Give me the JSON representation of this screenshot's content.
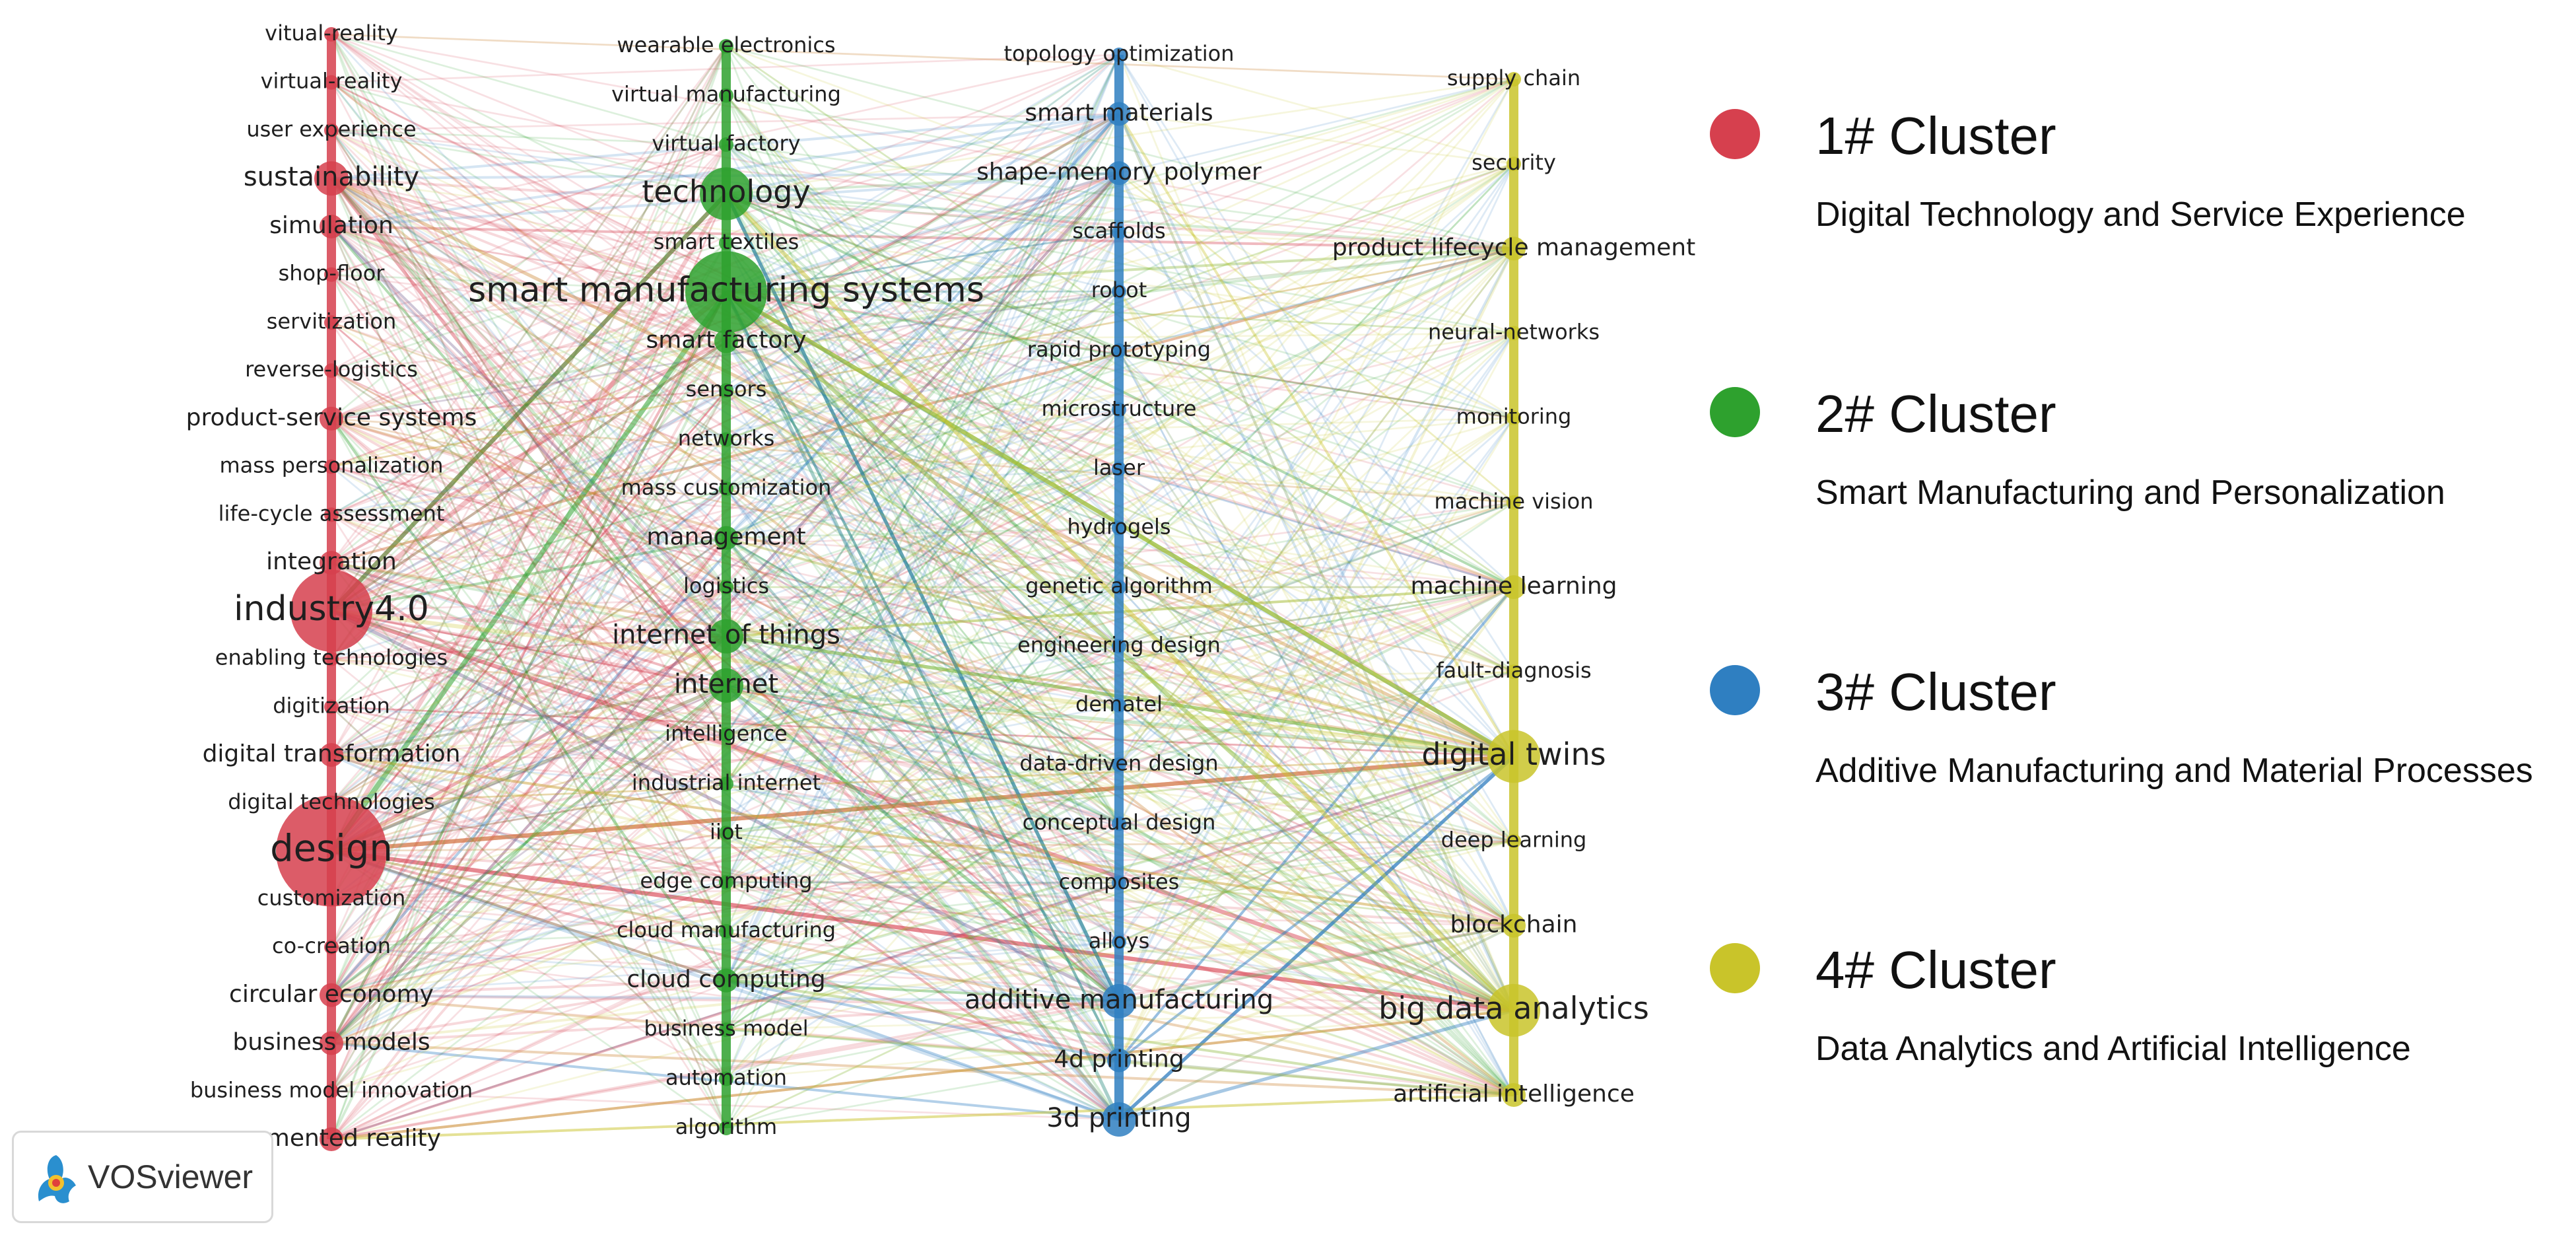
{
  "colors": {
    "cluster1": "#d6404e",
    "cluster2": "#2ea12e",
    "cluster3": "#2f7fc1",
    "cluster4": "#c9c42a"
  },
  "legend": [
    {
      "name": "1# Cluster",
      "description": "Digital Technology and Service Experience",
      "color": "#d6404e"
    },
    {
      "name": "2# Cluster",
      "description": "Smart Manufacturing and Personalization",
      "color": "#2ea12e"
    },
    {
      "name": "3# Cluster",
      "description": "Additive Manufacturing and Material Processes",
      "color": "#2f7fc1"
    },
    {
      "name": "4# Cluster",
      "description": "Data Analytics and Artificial Intelligence",
      "color": "#c9c42a"
    }
  ],
  "clusters": [
    {
      "id": 1,
      "terms": [
        {
          "label": "vitual-reality",
          "weight": 1
        },
        {
          "label": "virtual-reality",
          "weight": 1
        },
        {
          "label": "user experience",
          "weight": 1
        },
        {
          "label": "sustainability",
          "weight": 3
        },
        {
          "label": "simulation",
          "weight": 2
        },
        {
          "label": "shop-floor",
          "weight": 1
        },
        {
          "label": "servitization",
          "weight": 1
        },
        {
          "label": "reverse-logistics",
          "weight": 1
        },
        {
          "label": "product-service systems",
          "weight": 2
        },
        {
          "label": "mass personalization",
          "weight": 1
        },
        {
          "label": "life-cycle assessment",
          "weight": 1
        },
        {
          "label": "integration",
          "weight": 2
        },
        {
          "label": "industry4.0",
          "weight": 5
        },
        {
          "label": "enabling technologies",
          "weight": 1
        },
        {
          "label": "digitization",
          "weight": 1
        },
        {
          "label": "digital transformation",
          "weight": 2
        },
        {
          "label": "digital technologies",
          "weight": 1
        },
        {
          "label": "design",
          "weight": 6
        },
        {
          "label": "customization",
          "weight": 1
        },
        {
          "label": "co-creation",
          "weight": 1
        },
        {
          "label": "circular economy",
          "weight": 2
        },
        {
          "label": "business models",
          "weight": 2
        },
        {
          "label": "business model innovation",
          "weight": 1
        },
        {
          "label": "augmented reality",
          "weight": 2
        }
      ]
    },
    {
      "id": 2,
      "terms": [
        {
          "label": "wearable electronics",
          "weight": 1
        },
        {
          "label": "virtual manufacturing",
          "weight": 1
        },
        {
          "label": "virtual factory",
          "weight": 1
        },
        {
          "label": "technology",
          "weight": 4
        },
        {
          "label": "smart textiles",
          "weight": 1
        },
        {
          "label": "smart manufacturing systems",
          "weight": 5
        },
        {
          "label": "smart factory",
          "weight": 2
        },
        {
          "label": "sensors",
          "weight": 1
        },
        {
          "label": "networks",
          "weight": 1
        },
        {
          "label": "mass customization",
          "weight": 1
        },
        {
          "label": "management",
          "weight": 2
        },
        {
          "label": "logistics",
          "weight": 1
        },
        {
          "label": "internet of things",
          "weight": 3
        },
        {
          "label": "internet",
          "weight": 3
        },
        {
          "label": "intelligence",
          "weight": 1
        },
        {
          "label": "industrial internet",
          "weight": 1
        },
        {
          "label": "iiot",
          "weight": 1
        },
        {
          "label": "edge computing",
          "weight": 1
        },
        {
          "label": "cloud manufacturing",
          "weight": 1
        },
        {
          "label": "cloud computing",
          "weight": 2
        },
        {
          "label": "business model",
          "weight": 1
        },
        {
          "label": "automation",
          "weight": 1
        },
        {
          "label": "algorithm",
          "weight": 1
        }
      ]
    },
    {
      "id": 3,
      "terms": [
        {
          "label": "topology optimization",
          "weight": 1
        },
        {
          "label": "smart materials",
          "weight": 2
        },
        {
          "label": "shape-memory polymer",
          "weight": 2
        },
        {
          "label": "scaffolds",
          "weight": 1
        },
        {
          "label": "robot",
          "weight": 1
        },
        {
          "label": "rapid prototyping",
          "weight": 1
        },
        {
          "label": "microstructure",
          "weight": 1
        },
        {
          "label": "laser",
          "weight": 1
        },
        {
          "label": "hydrogels",
          "weight": 1
        },
        {
          "label": "genetic algorithm",
          "weight": 1
        },
        {
          "label": "engineering design",
          "weight": 1
        },
        {
          "label": "dematel",
          "weight": 1
        },
        {
          "label": "data-driven design",
          "weight": 1
        },
        {
          "label": "conceptual design",
          "weight": 1
        },
        {
          "label": "composites",
          "weight": 1
        },
        {
          "label": "alloys",
          "weight": 1
        },
        {
          "label": "additive manufacturing",
          "weight": 3
        },
        {
          "label": "4d printing",
          "weight": 2
        },
        {
          "label": "3d printing",
          "weight": 3
        }
      ]
    },
    {
      "id": 4,
      "terms": [
        {
          "label": "supply chain",
          "weight": 1
        },
        {
          "label": "security",
          "weight": 1
        },
        {
          "label": "product lifecycle management",
          "weight": 2
        },
        {
          "label": "neural-networks",
          "weight": 1
        },
        {
          "label": "monitoring",
          "weight": 1
        },
        {
          "label": "machine vision",
          "weight": 1
        },
        {
          "label": "machine learning",
          "weight": 2
        },
        {
          "label": "fault-diagnosis",
          "weight": 1
        },
        {
          "label": "digital twins",
          "weight": 4
        },
        {
          "label": "deep learning",
          "weight": 1
        },
        {
          "label": "blockchain",
          "weight": 2
        },
        {
          "label": "big data analytics",
          "weight": 4
        },
        {
          "label": "artificial intelligence",
          "weight": 2
        }
      ]
    }
  ],
  "badge": {
    "label": "VOSviewer"
  }
}
